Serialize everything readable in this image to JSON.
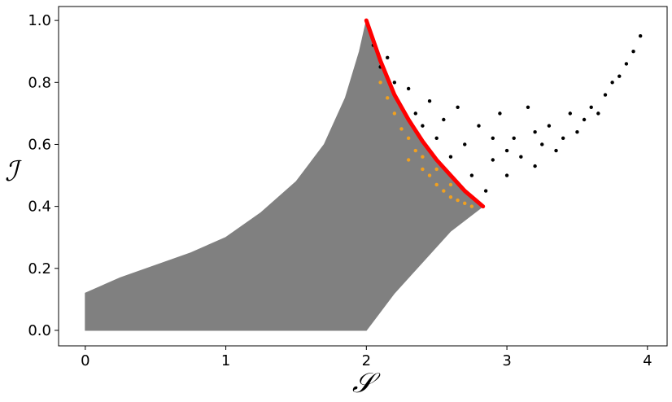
{
  "chart_data": {
    "type": "scatter",
    "xlabel": "𝒮",
    "ylabel": "ℐ",
    "xlim": [
      -0.19,
      4.14
    ],
    "ylim": [
      -0.05,
      1.045
    ],
    "xticks": [
      0,
      1,
      2,
      3,
      4
    ],
    "yticks": [
      {
        "value": 0,
        "label": "0.0"
      },
      {
        "value": 0.2,
        "label": "0.2"
      },
      {
        "value": 0.4,
        "label": "0.4"
      },
      {
        "value": 0.6,
        "label": "0.6"
      },
      {
        "value": 0.8,
        "label": "0.8"
      },
      {
        "value": 1,
        "label": "1.0"
      }
    ],
    "series": [
      {
        "mark": "area",
        "color": "#808080",
        "x": [
          0,
          0,
          0.25,
          0.5,
          0.75,
          1,
          1.25,
          1.5,
          1.7,
          1.85,
          1.95,
          2,
          2.1,
          2.2,
          2.3,
          2.4,
          2.5,
          2.6,
          2.7,
          2.83,
          2.6,
          2.4,
          2.2,
          2.05,
          2
        ],
        "y": [
          0,
          0.12,
          0.17,
          0.21,
          0.25,
          0.3,
          0.38,
          0.48,
          0.6,
          0.75,
          0.9,
          1.0,
          0.87,
          0.76,
          0.68,
          0.61,
          0.55,
          0.5,
          0.45,
          0.4,
          0.32,
          0.22,
          0.12,
          0.03,
          0
        ]
      },
      {
        "mark": "points",
        "color": "#000000",
        "x": [
          2.05,
          2.1,
          2.15,
          2.2,
          2.25,
          2.3,
          2.35,
          2.4,
          2.45,
          2.5,
          2.55,
          2.6,
          2.65,
          2.7,
          2.75,
          2.8,
          2.85,
          2.9,
          2.95,
          3.0,
          3.05,
          3.1,
          3.15,
          3.2,
          3.25,
          3.3,
          3.35,
          3.4,
          3.45,
          3.5,
          3.55,
          3.6,
          3.65,
          3.7,
          3.75,
          3.8,
          3.85,
          3.9,
          3.95,
          3.0,
          3.2,
          2.9
        ],
        "y": [
          0.92,
          0.85,
          0.88,
          0.8,
          0.72,
          0.78,
          0.7,
          0.66,
          0.74,
          0.62,
          0.68,
          0.56,
          0.72,
          0.6,
          0.5,
          0.66,
          0.45,
          0.55,
          0.7,
          0.5,
          0.62,
          0.56,
          0.72,
          0.53,
          0.6,
          0.66,
          0.58,
          0.62,
          0.7,
          0.64,
          0.68,
          0.72,
          0.7,
          0.76,
          0.8,
          0.82,
          0.86,
          0.9,
          0.95,
          0.58,
          0.64,
          0.62
        ]
      },
      {
        "mark": "points",
        "color": "#f0a020",
        "x": [
          2.1,
          2.15,
          2.2,
          2.25,
          2.3,
          2.35,
          2.3,
          2.4,
          2.45,
          2.5,
          2.55,
          2.6,
          2.65,
          2.7,
          2.75,
          2.4,
          2.5,
          2.6
        ],
        "y": [
          0.8,
          0.75,
          0.7,
          0.65,
          0.62,
          0.58,
          0.55,
          0.52,
          0.5,
          0.47,
          0.45,
          0.43,
          0.42,
          0.41,
          0.4,
          0.56,
          0.52,
          0.47
        ]
      },
      {
        "mark": "line",
        "color": "#ff0000",
        "x": [
          2,
          2.1,
          2.2,
          2.3,
          2.4,
          2.5,
          2.6,
          2.7,
          2.83
        ],
        "y": [
          1.0,
          0.87,
          0.76,
          0.68,
          0.61,
          0.55,
          0.5,
          0.45,
          0.4
        ]
      }
    ]
  }
}
